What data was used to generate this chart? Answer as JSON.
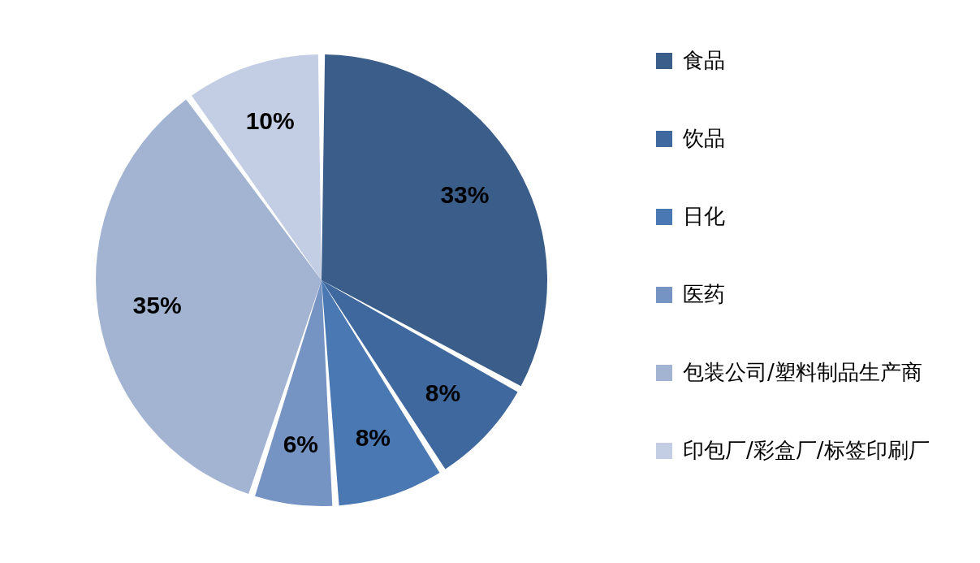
{
  "chart_data": {
    "type": "pie",
    "categories": [
      "食品",
      "饮品",
      "日化",
      "医药",
      "包装公司/塑料制品生产商",
      "印包厂/彩盒厂/标签印刷厂"
    ],
    "values": [
      33,
      8,
      8,
      6,
      35,
      10
    ],
    "colors": [
      "#3a5d8a",
      "#3f699e",
      "#4a78b2",
      "#7593c3",
      "#a3b4d3",
      "#c3cde3"
    ],
    "value_labels": [
      "33%",
      "8%",
      "8%",
      "6%",
      "35%",
      "10%"
    ],
    "legend": "right"
  }
}
